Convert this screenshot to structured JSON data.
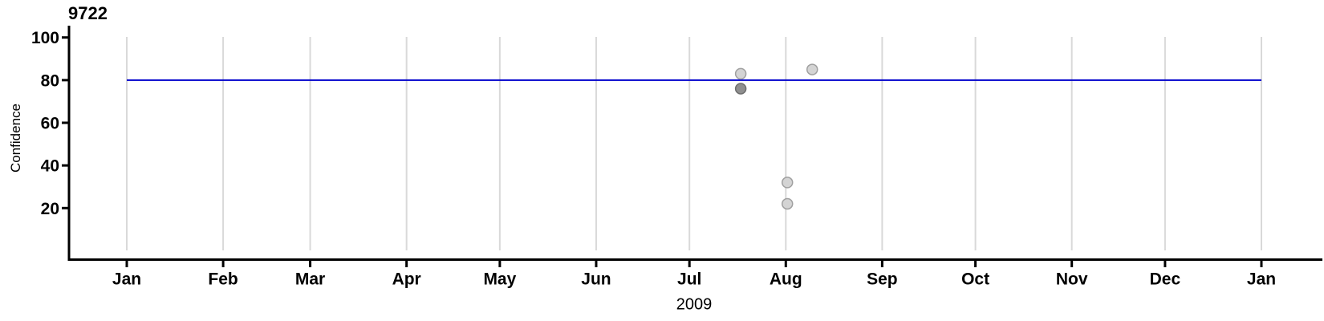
{
  "chart_data": {
    "type": "scatter",
    "title": "9722",
    "xlabel": "2009",
    "ylabel": "Confidence",
    "x_axis": {
      "tick_labels": [
        "Jan",
        "Feb",
        "Mar",
        "Apr",
        "May",
        "Jun",
        "Jul",
        "Aug",
        "Sep",
        "Oct",
        "Nov",
        "Dec",
        "Jan"
      ],
      "tick_days": [
        0,
        31,
        59,
        90,
        120,
        151,
        181,
        212,
        243,
        273,
        304,
        334,
        365
      ],
      "range_days": [
        0,
        365
      ],
      "year": "2009"
    },
    "y_axis": {
      "ticks": [
        20,
        40,
        60,
        80,
        100
      ],
      "tick_labels": [
        "20",
        "40",
        "60",
        "80",
        "100"
      ],
      "range": [
        0,
        100
      ]
    },
    "reference_line": {
      "value": 80,
      "span_days": [
        0,
        365
      ]
    },
    "points": [
      {
        "date": "2009-07-17",
        "day": 197.5,
        "value": 83,
        "shade": "light"
      },
      {
        "date": "2009-07-17",
        "day": 197.5,
        "value": 76,
        "shade": "dark"
      },
      {
        "date": "2009-08-01",
        "day": 212.5,
        "value": 32,
        "shade": "light"
      },
      {
        "date": "2009-08-01",
        "day": 212.5,
        "value": 22,
        "shade": "light"
      },
      {
        "date": "2009-08-09",
        "day": 220.5,
        "value": 85,
        "shade": "light"
      }
    ],
    "colors": {
      "reference_line": "#0000cc",
      "grid": "#d9d9d9",
      "axis": "#000000",
      "point_light_fill": "#d4d4d4",
      "point_light_stroke": "#a0a0a0",
      "point_dark_fill": "#8f8f8f",
      "point_dark_stroke": "#6e6e6e",
      "background": "#ffffff"
    },
    "grid": "vertical-only",
    "legend": "none"
  }
}
